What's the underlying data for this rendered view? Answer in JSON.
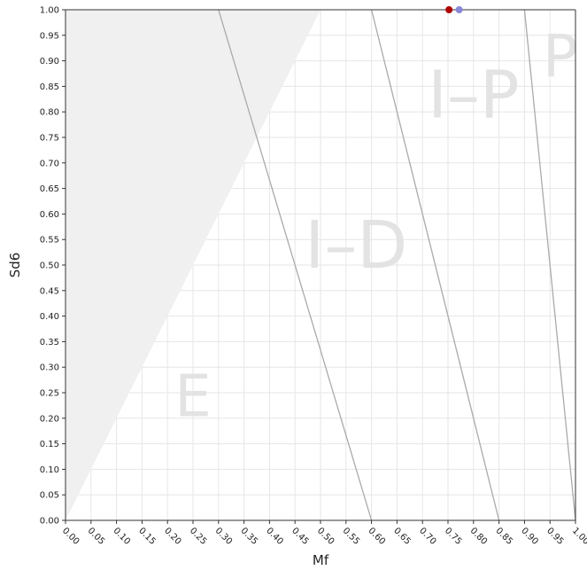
{
  "chart_data": {
    "type": "scatter",
    "xlabel": "Mf",
    "ylabel": "Sd6",
    "xlim": [
      0,
      1
    ],
    "ylim": [
      0,
      1
    ],
    "x_ticks": [
      "0.00",
      "0.05",
      "0.10",
      "0.15",
      "0.20",
      "0.25",
      "0.30",
      "0.35",
      "0.40",
      "0.45",
      "0.50",
      "0.55",
      "0.60",
      "0.65",
      "0.70",
      "0.75",
      "0.80",
      "0.85",
      "0.90",
      "0.95",
      "1.00"
    ],
    "y_ticks": [
      "0.00",
      "0.05",
      "0.10",
      "0.15",
      "0.20",
      "0.25",
      "0.30",
      "0.35",
      "0.40",
      "0.45",
      "0.50",
      "0.55",
      "0.60",
      "0.65",
      "0.70",
      "0.75",
      "0.80",
      "0.85",
      "0.90",
      "0.95",
      "1.00"
    ],
    "grid": true,
    "shaded_region": {
      "polygon": [
        [
          0,
          0
        ],
        [
          0,
          1
        ],
        [
          0.5,
          1
        ]
      ],
      "color": "#f0f0f0"
    },
    "boundary_lines": [
      {
        "x1": 0.3,
        "y1": 1,
        "x2": 0.6,
        "y2": 0
      },
      {
        "x1": 0.6,
        "y1": 1,
        "x2": 0.85,
        "y2": 0
      },
      {
        "x1": 0.9,
        "y1": 1,
        "x2": 1.0,
        "y2": 0
      }
    ],
    "region_labels": [
      {
        "text": "E",
        "x": 0.25,
        "y": 0.235
      },
      {
        "text": "I–D",
        "x": 0.57,
        "y": 0.53
      },
      {
        "text": "I–P",
        "x": 0.8,
        "y": 0.825
      },
      {
        "text": "P",
        "x": 0.97,
        "y": 0.9
      }
    ],
    "series": [
      {
        "color": "#b00000",
        "points": [
          [
            0.752,
            1.0
          ]
        ]
      },
      {
        "color": "#8888d8",
        "points": [
          [
            0.772,
            1.0
          ]
        ]
      }
    ]
  }
}
